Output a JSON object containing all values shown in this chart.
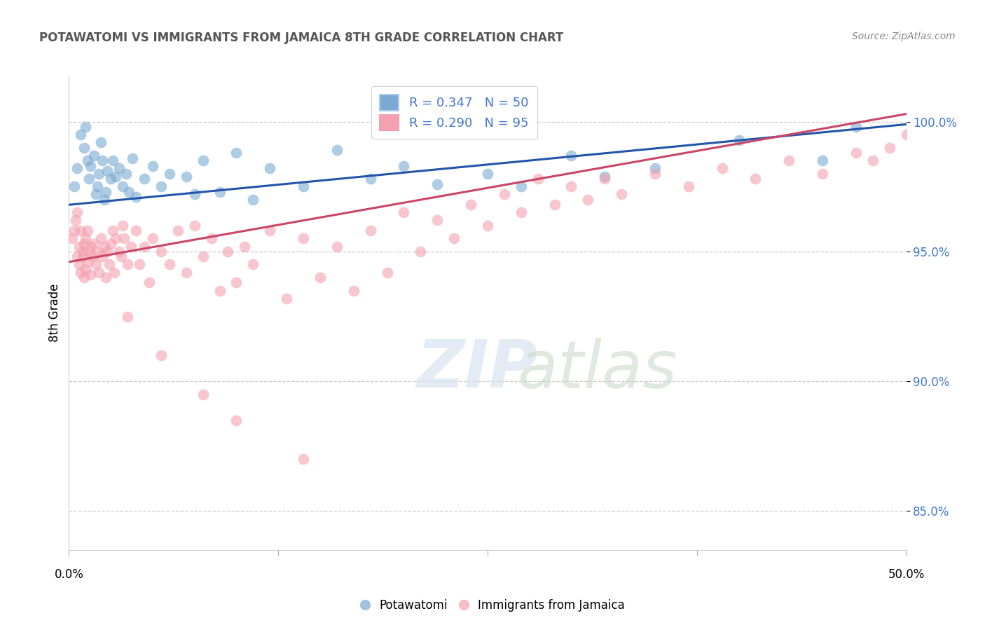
{
  "title": "POTAWATOMI VS IMMIGRANTS FROM JAMAICA 8TH GRADE CORRELATION CHART",
  "source": "Source: ZipAtlas.com",
  "ylabel": "8th Grade",
  "xlim": [
    0.0,
    50.0
  ],
  "ylim": [
    83.5,
    101.8
  ],
  "yticks": [
    85.0,
    90.0,
    95.0,
    100.0
  ],
  "ytick_labels": [
    "85.0%",
    "90.0%",
    "95.0%",
    "100.0%"
  ],
  "blue_color": "#7aaad4",
  "pink_color": "#f4a0b0",
  "blue_line_color": "#2255aa",
  "pink_line_color": "#cc4466",
  "legend_blue_label": "R = 0.347   N = 50",
  "legend_pink_label": "R = 0.290   N = 95",
  "legend_text_color": "#4477cc",
  "blue_trend_y0": 96.8,
  "blue_trend_y1": 99.9,
  "pink_trend_y0": 94.6,
  "pink_trend_y1": 100.3,
  "blue_x": [
    0.3,
    0.5,
    0.7,
    0.9,
    1.0,
    1.1,
    1.2,
    1.3,
    1.5,
    1.6,
    1.7,
    1.8,
    1.9,
    2.0,
    2.1,
    2.2,
    2.3,
    2.5,
    2.6,
    2.8,
    3.0,
    3.2,
    3.4,
    3.6,
    3.8,
    4.0,
    4.5,
    5.0,
    5.5,
    6.0,
    7.0,
    7.5,
    8.0,
    9.0,
    10.0,
    11.0,
    12.0,
    14.0,
    16.0,
    18.0,
    20.0,
    22.0,
    25.0,
    27.0,
    30.0,
    32.0,
    35.0,
    40.0,
    45.0,
    47.0
  ],
  "blue_y": [
    97.5,
    98.2,
    99.5,
    99.0,
    99.8,
    98.5,
    97.8,
    98.3,
    98.7,
    97.2,
    97.5,
    98.0,
    99.2,
    98.5,
    97.0,
    97.3,
    98.1,
    97.8,
    98.5,
    97.9,
    98.2,
    97.5,
    98.0,
    97.3,
    98.6,
    97.1,
    97.8,
    98.3,
    97.5,
    98.0,
    97.9,
    97.2,
    98.5,
    97.3,
    98.8,
    97.0,
    98.2,
    97.5,
    98.9,
    97.8,
    98.3,
    97.6,
    98.0,
    97.5,
    98.7,
    97.9,
    98.2,
    99.3,
    98.5,
    99.8
  ],
  "pink_x": [
    0.2,
    0.3,
    0.4,
    0.5,
    0.5,
    0.6,
    0.6,
    0.7,
    0.7,
    0.8,
    0.8,
    0.9,
    0.9,
    1.0,
    1.0,
    1.1,
    1.1,
    1.2,
    1.3,
    1.3,
    1.4,
    1.5,
    1.6,
    1.7,
    1.8,
    1.9,
    2.0,
    2.1,
    2.2,
    2.3,
    2.4,
    2.5,
    2.6,
    2.7,
    2.8,
    3.0,
    3.1,
    3.2,
    3.3,
    3.5,
    3.7,
    4.0,
    4.2,
    4.5,
    4.8,
    5.0,
    5.5,
    6.0,
    6.5,
    7.0,
    7.5,
    8.0,
    8.5,
    9.0,
    9.5,
    10.0,
    10.5,
    11.0,
    12.0,
    13.0,
    14.0,
    15.0,
    16.0,
    17.0,
    18.0,
    19.0,
    20.0,
    21.0,
    22.0,
    23.0,
    24.0,
    25.0,
    26.0,
    27.0,
    28.0,
    29.0,
    30.0,
    31.0,
    32.0,
    33.0,
    35.0,
    37.0,
    39.0,
    41.0,
    43.0,
    45.0,
    47.0,
    48.0,
    49.0,
    50.0,
    3.5,
    5.5,
    8.0,
    10.0,
    14.0
  ],
  "pink_y": [
    95.5,
    95.8,
    96.2,
    94.8,
    96.5,
    95.2,
    94.5,
    95.8,
    94.2,
    95.0,
    94.8,
    95.3,
    94.0,
    95.5,
    94.3,
    95.8,
    94.6,
    95.0,
    95.2,
    94.1,
    94.8,
    95.3,
    94.5,
    95.0,
    94.2,
    95.5,
    94.8,
    95.2,
    94.0,
    95.0,
    94.5,
    95.3,
    95.8,
    94.2,
    95.5,
    95.0,
    94.8,
    96.0,
    95.5,
    94.5,
    95.2,
    95.8,
    94.5,
    95.2,
    93.8,
    95.5,
    95.0,
    94.5,
    95.8,
    94.2,
    96.0,
    94.8,
    95.5,
    93.5,
    95.0,
    93.8,
    95.2,
    94.5,
    95.8,
    93.2,
    95.5,
    94.0,
    95.2,
    93.5,
    95.8,
    94.2,
    96.5,
    95.0,
    96.2,
    95.5,
    96.8,
    96.0,
    97.2,
    96.5,
    97.8,
    96.8,
    97.5,
    97.0,
    97.8,
    97.2,
    98.0,
    97.5,
    98.2,
    97.8,
    98.5,
    98.0,
    98.8,
    98.5,
    99.0,
    99.5,
    92.5,
    91.0,
    89.5,
    88.5,
    87.0
  ],
  "watermark_zip": "ZIP",
  "watermark_atlas": "atlas",
  "bottom_legend_left": "Potawatomi",
  "bottom_legend_right": "Immigrants from Jamaica"
}
